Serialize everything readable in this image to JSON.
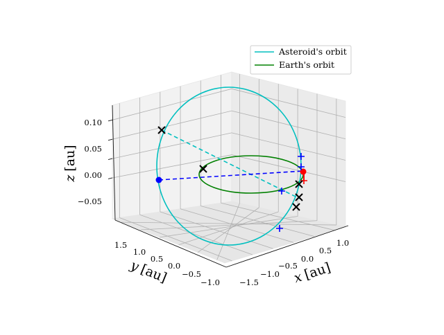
{
  "chart_data": {
    "type": "line",
    "projection": "3d",
    "legend_position": "top-right",
    "grid": true,
    "colors": {
      "asteroid": "#00bfbf",
      "earth": "#008000",
      "dashed_earth_line": "#0000ff",
      "dashed_asteroid_line": "#00bfbf",
      "cross_marker": "#000000",
      "plus_marker": "#0000ff",
      "plus_marker_red": "#ff0000",
      "point_blue": "#0000ff",
      "point_red": "#ff0000"
    },
    "series": [
      {
        "name": "Asteroid's orbit",
        "color": "#00bfbf",
        "style": "solid"
      },
      {
        "name": "Earth's orbit",
        "color": "#008000",
        "style": "solid"
      }
    ],
    "axes": {
      "x": {
        "label": "x [au]",
        "label_var": "x",
        "label_unit": "[au]",
        "ticks": [
          "−1.5",
          "−1.0",
          "−0.5",
          "0.0",
          "0.5",
          "1.0"
        ],
        "range": [
          -1.7,
          1.2
        ]
      },
      "y": {
        "label": "y [au]",
        "label_var": "y",
        "label_unit": "[au]",
        "ticks": [
          "1.5",
          "1.0",
          "0.5",
          "0.0",
          "−0.5",
          "−1.0"
        ],
        "range": [
          -1.2,
          1.7
        ]
      },
      "z": {
        "label": "z [au]",
        "label_var": "z",
        "label_unit": "[au]",
        "ticks": [
          "0.10",
          "0.05",
          "0.00",
          "−0.05"
        ],
        "range": [
          -0.09,
          0.13
        ]
      }
    },
    "annotations": {
      "earth_positions_blue_dot": {
        "x": 0.0,
        "y": 1.35,
        "z": 0.0
      },
      "sun_red_dot": {
        "x": 1.0,
        "y": 0.0,
        "z": 0.0
      },
      "cross_markers": [
        {
          "x": -1.05,
          "y": 1.2,
          "z": 0.09
        },
        {
          "x": -0.2,
          "y": 0.9,
          "z": 0.0
        },
        {
          "x": 0.95,
          "y": -0.1,
          "z": -0.01
        },
        {
          "x": 1.05,
          "y": -0.4,
          "z": -0.02
        },
        {
          "x": 1.1,
          "y": -0.6,
          "z": -0.03
        }
      ],
      "plus_markers": [
        {
          "x": 0.95,
          "y": 0.3,
          "z": 0.05
        },
        {
          "x": 1.0,
          "y": 0.0,
          "z": 0.0
        },
        {
          "x": 0.7,
          "y": -0.05,
          "z": -0.02
        },
        {
          "x": 0.5,
          "y": -1.0,
          "z": -0.06
        }
      ]
    }
  }
}
